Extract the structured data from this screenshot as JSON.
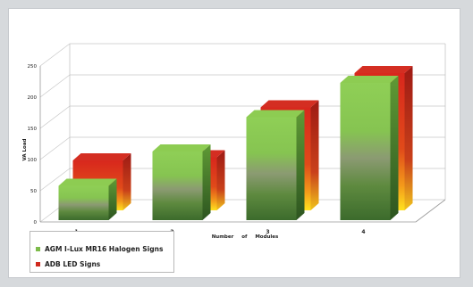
{
  "chart_data": {
    "type": "bar",
    "title": "",
    "xlabel": "Number of Modules",
    "ylabel": "VA Load",
    "ylim": [
      0,
      250
    ],
    "yticks": [
      0,
      50,
      100,
      150,
      200,
      250
    ],
    "categories": [
      "1",
      "2",
      "3",
      "4"
    ],
    "series": [
      {
        "name": "AGM I-Lux MR16 Halogen Signs",
        "values": [
          55,
          110,
          165,
          220
        ],
        "color": "#7dbb4a"
      },
      {
        "name": "ADB LED Signs",
        "values": [
          80,
          85,
          165,
          220
        ],
        "color": "#d02a1e"
      }
    ],
    "legend_placement": "bottom-left",
    "grid": true,
    "style": "3d"
  }
}
